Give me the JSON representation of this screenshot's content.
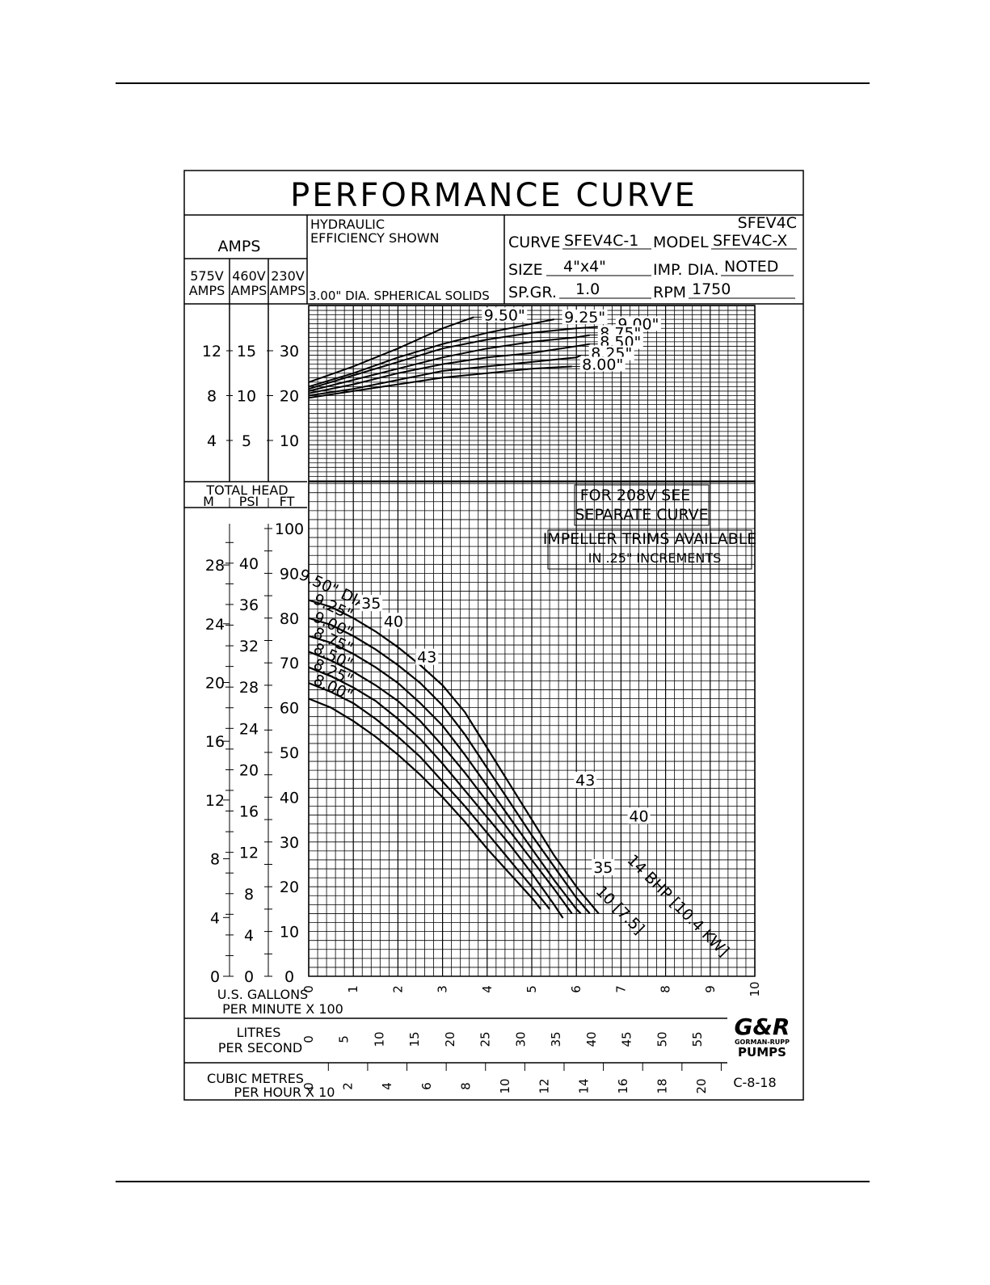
{
  "title": "PERFORMANCE CURVE",
  "info": {
    "amps_label": "AMPS",
    "volt_575": "575V",
    "volt_460": "460V",
    "volt_230": "230V",
    "amps_sub": "AMPS",
    "hydraulic_1": "HYDRAULIC",
    "hydraulic_2": "EFFICIENCY  SHOWN",
    "solids": "3.00\" DIA. SPHERICAL  SOLIDS",
    "model_top": "SFEV4C",
    "curve_label": "CURVE",
    "curve_value": "SFEV4C-1",
    "model_label": "MODEL",
    "model_value": "SFEV4C-X",
    "size_label": "SIZE",
    "size_value": "4\"x4\"",
    "impdia_label": "IMP. DIA.",
    "impdia_value": "NOTED",
    "spgr_label": "SP.GR.",
    "spgr_value": "1.0",
    "rpm_label": "RPM",
    "rpm_value": "1750"
  },
  "head_header": {
    "title": "TOTAL  HEAD",
    "m": "M",
    "psi": "PSI",
    "ft": "FT"
  },
  "notes": {
    "n208_1": "FOR  208V  SEE",
    "n208_2": "SEPARATE  CURVE",
    "trim_1": "IMPELLER  TRIMS  AVAILABLE",
    "trim_2": "IN  .25\" INCREMENTS"
  },
  "axes": {
    "gpm_label_1": "U.S. GALLONS",
    "gpm_label_2": "PER  MINUTE  X  100",
    "lps_label_1": "LITRES",
    "lps_label_2": "PER  SECOND",
    "cmh_label_1": "CUBIC  METRES",
    "cmh_label_2": "PER  HOUR  X  10",
    "gpm_ticks": [
      "0",
      "1",
      "2",
      "3",
      "4",
      "5",
      "6",
      "7",
      "8",
      "9",
      "10"
    ],
    "lps_ticks": [
      "0",
      "5",
      "10",
      "15",
      "20",
      "25",
      "30",
      "35",
      "40",
      "45",
      "50",
      "55"
    ],
    "cmh_ticks": [
      "0",
      "2",
      "4",
      "6",
      "8",
      "10",
      "12",
      "14",
      "16",
      "18",
      "20"
    ],
    "ft_ticks": [
      "0",
      "10",
      "20",
      "30",
      "40",
      "50",
      "60",
      "70",
      "80",
      "90",
      "100"
    ],
    "psi_ticks": [
      "0",
      "4",
      "8",
      "12",
      "16",
      "20",
      "24",
      "28",
      "32",
      "36",
      "40"
    ],
    "m_ticks": [
      "0",
      "4",
      "8",
      "12",
      "16",
      "20",
      "24",
      "28"
    ],
    "amp230_ticks": [
      "10",
      "20",
      "30"
    ],
    "amp460_ticks": [
      "5",
      "10",
      "15"
    ],
    "amp575_ticks": [
      "4",
      "8",
      "12"
    ]
  },
  "logo": {
    "text": "G&R",
    "line1": "GORMAN-RUPP",
    "line2": "PUMPS"
  },
  "drawing_no": "C-8-18",
  "chart_data": {
    "type": "line",
    "title": "PERFORMANCE CURVE",
    "xlabel": "U.S. GALLONS PER MINUTE X 100",
    "ylabel": "TOTAL HEAD FT",
    "xlim": [
      0,
      10
    ],
    "ylim": [
      0,
      100
    ],
    "grid": true,
    "head_series": [
      {
        "name": "9.50\" DIA",
        "x": [
          0,
          0.5,
          1,
          1.5,
          2,
          2.5,
          3,
          3.5,
          4,
          4.5,
          5,
          5.5,
          6,
          6.5
        ],
        "y": [
          84,
          82.5,
          80,
          77,
          73.5,
          69.5,
          65,
          59,
          51,
          43,
          35,
          27,
          20,
          14
        ]
      },
      {
        "name": "9.25\"",
        "x": [
          0,
          0.5,
          1,
          1.5,
          2,
          2.5,
          3,
          3.5,
          4,
          4.5,
          5,
          5.5,
          6,
          6.3
        ],
        "y": [
          80,
          78.5,
          76,
          73,
          69.5,
          65.5,
          60.5,
          54,
          46.5,
          39,
          31.5,
          24.5,
          17.5,
          14
        ]
      },
      {
        "name": "9.00\"",
        "x": [
          0,
          0.5,
          1,
          1.5,
          2,
          2.5,
          3,
          3.5,
          4,
          4.5,
          5,
          5.5,
          6,
          6.1
        ],
        "y": [
          76,
          74.5,
          72,
          69,
          65.5,
          61,
          56,
          49.5,
          42.5,
          35.5,
          28.5,
          21.5,
          15,
          14
        ]
      },
      {
        "name": "8.75\"",
        "x": [
          0,
          0.5,
          1,
          1.5,
          2,
          2.5,
          3,
          3.5,
          4,
          4.5,
          5,
          5.5,
          5.9
        ],
        "y": [
          72.5,
          70.5,
          68,
          65,
          61.5,
          57,
          51.5,
          45.5,
          39,
          32.5,
          26,
          19.5,
          14
        ]
      },
      {
        "name": "8.50\"",
        "x": [
          0,
          0.5,
          1,
          1.5,
          2,
          2.5,
          3,
          3.5,
          4,
          4.5,
          5,
          5.5,
          5.7
        ],
        "y": [
          69,
          67,
          64.5,
          61.5,
          57.5,
          53,
          47.5,
          41.5,
          35.5,
          29.5,
          23,
          16,
          13
        ]
      },
      {
        "name": "8.25\"",
        "x": [
          0,
          0.5,
          1,
          1.5,
          2,
          2.5,
          3,
          3.5,
          4,
          4.5,
          5,
          5.4
        ],
        "y": [
          65.5,
          63.5,
          61,
          57.5,
          53.5,
          49,
          43.5,
          38,
          32,
          26,
          20,
          15
        ]
      },
      {
        "name": "8.00\"",
        "x": [
          0,
          0.5,
          1,
          1.5,
          2,
          2.5,
          3,
          3.5,
          4,
          4.5,
          5,
          5.2
        ],
        "y": [
          62,
          60,
          57,
          53.5,
          49.5,
          45,
          40,
          34.5,
          28.5,
          23,
          17.5,
          15
        ]
      }
    ],
    "amps_series_230v": [
      {
        "name": "9.50\"",
        "x": [
          0,
          1,
          2,
          3,
          3.7
        ],
        "y": [
          23,
          26.5,
          30.5,
          35,
          37.5
        ]
      },
      {
        "name": "9.25\"",
        "x": [
          0,
          1,
          2,
          3,
          4,
          5,
          5.5
        ],
        "y": [
          22,
          25,
          28.5,
          31.5,
          34,
          36,
          37
        ]
      },
      {
        "name": "9.00\"",
        "x": [
          0,
          1,
          2,
          3,
          4,
          5,
          6,
          6.7
        ],
        "y": [
          21.5,
          24.5,
          27.5,
          30.5,
          32.5,
          34,
          35,
          35.5
        ]
      },
      {
        "name": "8.75\"",
        "x": [
          0,
          1,
          2,
          3,
          4,
          5,
          6,
          6.3
        ],
        "y": [
          21,
          23.5,
          26,
          28.5,
          30.5,
          32,
          33,
          33.5
        ]
      },
      {
        "name": "8.50\"",
        "x": [
          0,
          1,
          2,
          3,
          4,
          5,
          6,
          6.3
        ],
        "y": [
          20.5,
          22.5,
          25,
          27,
          28.5,
          29.5,
          31,
          31.5
        ]
      },
      {
        "name": "8.25\"",
        "x": [
          0,
          1,
          2,
          3,
          4,
          5,
          6,
          6.1
        ],
        "y": [
          20,
          21.5,
          23.5,
          25.5,
          26.5,
          27.5,
          28.5,
          29
        ]
      },
      {
        "name": "8.00\"",
        "x": [
          0,
          1,
          2,
          3,
          4,
          5,
          5.9
        ],
        "y": [
          19.5,
          21,
          22.5,
          24,
          25,
          26,
          26.5
        ]
      }
    ],
    "efficiency_labels": [
      "35",
      "40",
      "43",
      "43",
      "40",
      "35"
    ],
    "bhp_labels": [
      "10 [7.5]",
      "14 BHP [10.4 KW]"
    ]
  }
}
